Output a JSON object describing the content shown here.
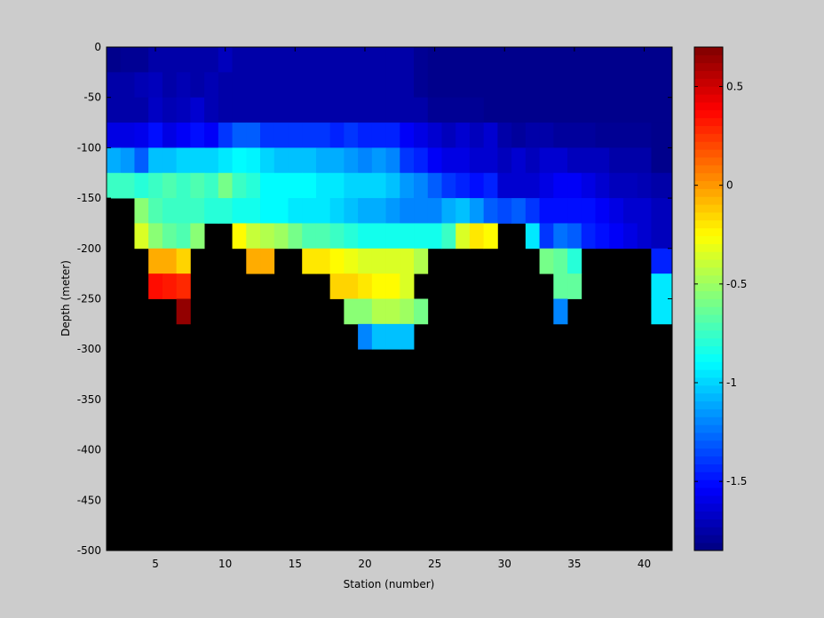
{
  "chart_data": {
    "type": "heatmap",
    "title": "",
    "xlabel": "Station (number)",
    "ylabel": "Depth (meter)",
    "xlim": [
      1.5,
      42
    ],
    "ylim": [
      -500,
      0
    ],
    "xticks": [
      5,
      10,
      15,
      20,
      25,
      30,
      35,
      40
    ],
    "yticks": [
      0,
      -50,
      -100,
      -150,
      -200,
      -250,
      -300,
      -350,
      -400,
      -450,
      -500
    ],
    "cell_height_m": 25,
    "no_data_color": "#000000",
    "colorbar": {
      "colormap": "jet",
      "range": [
        -1.85,
        0.7
      ],
      "ticks": [
        0.5,
        0,
        -0.5,
        -1,
        -1.5
      ]
    },
    "stations": [
      2,
      3,
      4,
      5,
      6,
      7,
      8,
      9,
      10,
      11,
      12,
      13,
      14,
      15,
      16,
      17,
      18,
      19,
      20,
      21,
      22,
      23,
      24,
      25,
      26,
      27,
      28,
      29,
      30,
      31,
      32,
      33,
      34,
      35,
      36,
      37,
      38,
      39,
      40,
      41
    ],
    "values": [
      [
        -1.82,
        -1.8,
        -1.8,
        -1.75,
        -1.75,
        -1.75,
        -1.75,
        -1.75,
        -1.7,
        -1.75,
        -1.75,
        -1.75,
        -1.75,
        -1.75,
        -1.75,
        -1.75,
        -1.75,
        -1.75,
        -1.75,
        -1.75,
        -1.75,
        -1.75,
        -1.8,
        -1.82,
        -1.82,
        -1.82,
        -1.82,
        -1.82,
        -1.82,
        -1.82,
        -1.82,
        -1.82,
        -1.82,
        -1.82,
        -1.82,
        -1.82,
        -1.82,
        -1.82,
        -1.82,
        -1.82
      ],
      [
        -1.75,
        -1.75,
        -1.72,
        -1.7,
        -1.75,
        -1.72,
        -1.75,
        -1.72,
        -1.75,
        -1.75,
        -1.75,
        -1.75,
        -1.75,
        -1.75,
        -1.75,
        -1.75,
        -1.75,
        -1.75,
        -1.75,
        -1.75,
        -1.75,
        -1.75,
        -1.8,
        -1.82,
        -1.82,
        -1.82,
        -1.82,
        -1.82,
        -1.82,
        -1.82,
        -1.82,
        -1.82,
        -1.82,
        -1.82,
        -1.82,
        -1.82,
        -1.82,
        -1.82,
        -1.82,
        -1.82
      ],
      [
        -1.75,
        -1.75,
        -1.75,
        -1.68,
        -1.72,
        -1.7,
        -1.65,
        -1.72,
        -1.75,
        -1.75,
        -1.75,
        -1.75,
        -1.75,
        -1.75,
        -1.75,
        -1.75,
        -1.75,
        -1.75,
        -1.75,
        -1.75,
        -1.75,
        -1.75,
        -1.75,
        -1.8,
        -1.8,
        -1.8,
        -1.8,
        -1.82,
        -1.82,
        -1.82,
        -1.82,
        -1.82,
        -1.82,
        -1.82,
        -1.82,
        -1.82,
        -1.82,
        -1.82,
        -1.82,
        -1.82
      ],
      [
        -1.6,
        -1.6,
        -1.58,
        -1.5,
        -1.6,
        -1.55,
        -1.5,
        -1.55,
        -1.4,
        -1.3,
        -1.3,
        -1.4,
        -1.4,
        -1.4,
        -1.4,
        -1.4,
        -1.45,
        -1.4,
        -1.45,
        -1.45,
        -1.45,
        -1.55,
        -1.6,
        -1.65,
        -1.7,
        -1.65,
        -1.7,
        -1.65,
        -1.75,
        -1.78,
        -1.75,
        -1.75,
        -1.78,
        -1.78,
        -1.78,
        -1.8,
        -1.8,
        -1.8,
        -1.8,
        -1.82
      ],
      [
        -1.1,
        -1.15,
        -1.3,
        -1.05,
        -1.05,
        -1.0,
        -1.0,
        -1.0,
        -0.95,
        -0.9,
        -0.92,
        -1.0,
        -1.05,
        -1.05,
        -1.05,
        -1.1,
        -1.1,
        -1.15,
        -1.2,
        -1.15,
        -1.2,
        -1.4,
        -1.45,
        -1.55,
        -1.6,
        -1.6,
        -1.65,
        -1.65,
        -1.7,
        -1.65,
        -1.7,
        -1.65,
        -1.65,
        -1.7,
        -1.7,
        -1.7,
        -1.75,
        -1.75,
        -1.75,
        -1.82
      ],
      [
        -0.75,
        -0.75,
        -0.8,
        -0.75,
        -0.7,
        -0.75,
        -0.7,
        -0.75,
        -0.6,
        -0.75,
        -0.8,
        -0.9,
        -0.9,
        -0.9,
        -0.9,
        -0.95,
        -0.95,
        -1.0,
        -1.0,
        -1.0,
        -1.05,
        -1.15,
        -1.2,
        -1.3,
        -1.4,
        -1.45,
        -1.5,
        -1.45,
        -1.65,
        -1.65,
        -1.65,
        -1.6,
        -1.55,
        -1.55,
        -1.6,
        -1.65,
        -1.7,
        -1.7,
        -1.72,
        -1.75
      ],
      [
        null,
        null,
        -0.55,
        -0.7,
        -0.75,
        -0.75,
        -0.75,
        -0.8,
        -0.8,
        -0.85,
        -0.85,
        -0.9,
        -0.9,
        -0.95,
        -0.95,
        -0.95,
        -1.0,
        -1.05,
        -1.1,
        -1.1,
        -1.15,
        -1.2,
        -1.2,
        -1.2,
        -1.1,
        -1.05,
        -1.15,
        -1.3,
        -1.35,
        -1.3,
        -1.4,
        -1.5,
        -1.5,
        -1.5,
        -1.5,
        -1.55,
        -1.6,
        -1.65,
        -1.65,
        -1.7
      ],
      [
        null,
        null,
        -0.35,
        -0.55,
        -0.65,
        -0.7,
        -0.55,
        null,
        null,
        -0.25,
        -0.4,
        -0.45,
        -0.5,
        -0.6,
        -0.7,
        -0.7,
        -0.75,
        -0.8,
        -0.85,
        -0.85,
        -0.85,
        -0.85,
        -0.85,
        -0.85,
        -0.75,
        -0.35,
        -0.2,
        -0.25,
        null,
        null,
        -0.95,
        -1.4,
        -1.25,
        -1.3,
        -1.45,
        -1.5,
        -1.55,
        -1.6,
        -1.65,
        -1.7
      ],
      [
        null,
        null,
        null,
        -0.05,
        -0.05,
        -0.15,
        null,
        null,
        null,
        null,
        -0.05,
        -0.05,
        null,
        null,
        -0.2,
        -0.2,
        -0.25,
        -0.3,
        -0.35,
        -0.35,
        -0.35,
        -0.35,
        -0.45,
        null,
        null,
        null,
        null,
        null,
        null,
        null,
        null,
        -0.6,
        -0.65,
        -0.8,
        null,
        null,
        null,
        null,
        null,
        -1.45
      ],
      [
        null,
        null,
        null,
        0.35,
        0.32,
        0.28,
        null,
        null,
        null,
        null,
        null,
        null,
        null,
        null,
        null,
        null,
        -0.15,
        -0.15,
        -0.2,
        -0.25,
        -0.25,
        -0.35,
        null,
        null,
        null,
        null,
        null,
        null,
        null,
        null,
        null,
        null,
        -0.65,
        -0.65,
        null,
        null,
        null,
        null,
        null,
        -0.95
      ],
      [
        null,
        null,
        null,
        null,
        null,
        0.65,
        null,
        null,
        null,
        null,
        null,
        null,
        null,
        null,
        null,
        null,
        null,
        -0.55,
        -0.55,
        -0.45,
        -0.45,
        -0.5,
        -0.6,
        null,
        null,
        null,
        null,
        null,
        null,
        null,
        null,
        null,
        -1.2,
        null,
        null,
        null,
        null,
        null,
        null,
        -0.95
      ],
      [
        null,
        null,
        null,
        null,
        null,
        null,
        null,
        null,
        null,
        null,
        null,
        null,
        null,
        null,
        null,
        null,
        null,
        null,
        -1.2,
        -1.05,
        -1.05,
        -1.05,
        null,
        null,
        null,
        null,
        null,
        null,
        null,
        null,
        null,
        null,
        null,
        null,
        null,
        null,
        null,
        null,
        null,
        null
      ]
    ]
  }
}
